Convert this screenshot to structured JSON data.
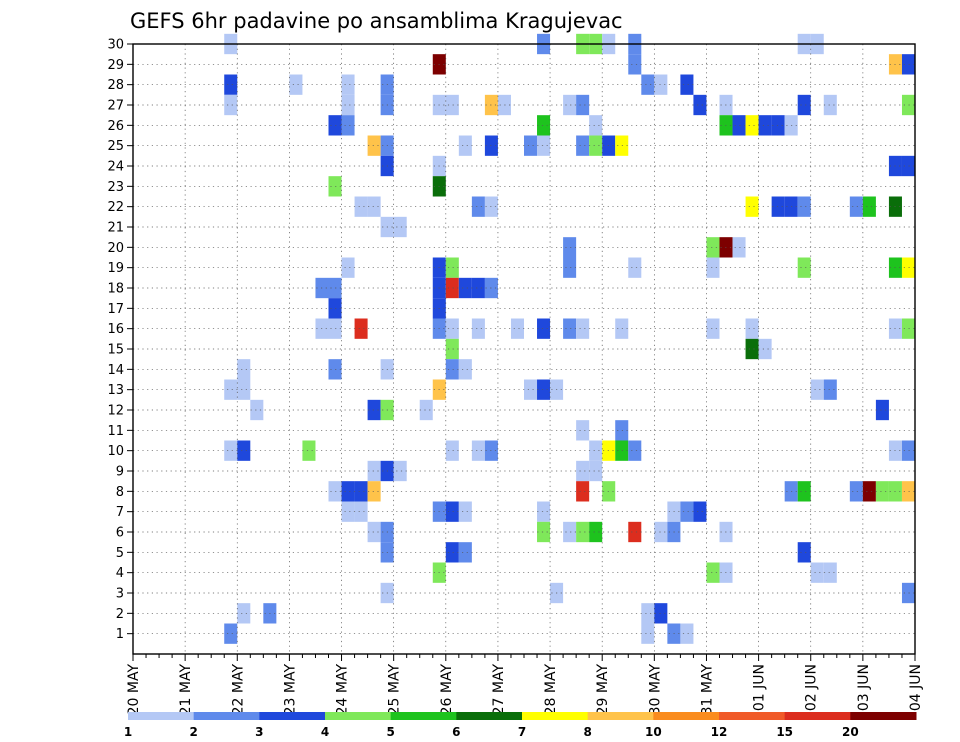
{
  "chart_data": {
    "type": "heatmap",
    "title": "GEFS 6hr padavine po ansamblima Kragujevac",
    "x_ticks": [
      "20 MAY",
      "21 MAY",
      "22 MAY",
      "23 MAY",
      "24 MAY",
      "25 MAY",
      "26 MAY",
      "27 MAY",
      "28 MAY",
      "29 MAY",
      "30 MAY",
      "31 MAY",
      "01 JUN",
      "02 JUN",
      "03 JUN",
      "04 JUN"
    ],
    "y_ticks": [
      "1",
      "2",
      "3",
      "4",
      "5",
      "6",
      "7",
      "8",
      "9",
      "10",
      "11",
      "12",
      "13",
      "14",
      "15",
      "16",
      "17",
      "18",
      "19",
      "20",
      "21",
      "22",
      "23",
      "24",
      "25",
      "26",
      "27",
      "28",
      "29",
      "30"
    ],
    "xlim": [
      0,
      60
    ],
    "ylim": [
      0,
      30
    ],
    "grid": true,
    "legend": {
      "position": "bottom",
      "bins": [
        {
          "label": "1",
          "color": "#b4c8f5"
        },
        {
          "label": "2",
          "color": "#5f8aeb"
        },
        {
          "label": "3",
          "color": "#1f48dc"
        },
        {
          "label": "4",
          "color": "#7fe85a"
        },
        {
          "label": "5",
          "color": "#1ec31e"
        },
        {
          "label": "6",
          "color": "#0a6e0a"
        },
        {
          "label": "7",
          "color": "#ffff00"
        },
        {
          "label": "8",
          "color": "#ffc34a"
        },
        {
          "label": "10",
          "color": "#fa8c1e"
        },
        {
          "label": "12",
          "color": "#f05a28"
        },
        {
          "label": "15",
          "color": "#dc2d1e"
        },
        {
          "label": "20",
          "color": "#7d0000"
        }
      ]
    },
    "member_colors": [
      "#b4c8f5",
      "#5f8aeb",
      "#1f48dc",
      "#7fe85a",
      "#1ec31e",
      "#0a6e0a",
      "#ffff00",
      "#ffc34a",
      "#fa8c1e",
      "#f05a28",
      "#dc2d1e",
      "#7d0000"
    ],
    "cells": [
      [
        7.5,
        30,
        0
      ],
      [
        31.5,
        30,
        1
      ],
      [
        34.5,
        30,
        3
      ],
      [
        35.5,
        30,
        3
      ],
      [
        36.5,
        30,
        0
      ],
      [
        38.5,
        30,
        1
      ],
      [
        51.5,
        30,
        0
      ],
      [
        52.5,
        30,
        0
      ],
      [
        23.5,
        29,
        11
      ],
      [
        38.5,
        29,
        1
      ],
      [
        58.5,
        29,
        7
      ],
      [
        59.5,
        29,
        2
      ],
      [
        7.5,
        28,
        2
      ],
      [
        12.5,
        28,
        0
      ],
      [
        16.5,
        28,
        0
      ],
      [
        19.5,
        28,
        1
      ],
      [
        39.5,
        28,
        1
      ],
      [
        40.5,
        28,
        0
      ],
      [
        42.5,
        28,
        2
      ],
      [
        7.5,
        27,
        0
      ],
      [
        16.5,
        27,
        0
      ],
      [
        19.5,
        27,
        1
      ],
      [
        23.5,
        27,
        0
      ],
      [
        24.5,
        27,
        0
      ],
      [
        27.5,
        27,
        7
      ],
      [
        28.5,
        27,
        0
      ],
      [
        33.5,
        27,
        0
      ],
      [
        34.5,
        27,
        1
      ],
      [
        43.5,
        27,
        2
      ],
      [
        45.5,
        27,
        0
      ],
      [
        51.5,
        27,
        2
      ],
      [
        53.5,
        27,
        0
      ],
      [
        59.5,
        27,
        3
      ],
      [
        15.5,
        26,
        2
      ],
      [
        16.5,
        26,
        1
      ],
      [
        31.5,
        26,
        4
      ],
      [
        35.5,
        26,
        0
      ],
      [
        45.5,
        26,
        4
      ],
      [
        46.5,
        26,
        2
      ],
      [
        47.5,
        26,
        6
      ],
      [
        48.5,
        26,
        2
      ],
      [
        49.5,
        26,
        2
      ],
      [
        50.5,
        26,
        0
      ],
      [
        18.5,
        25,
        7
      ],
      [
        19.5,
        25,
        1
      ],
      [
        25.5,
        25,
        0
      ],
      [
        27.5,
        25,
        2
      ],
      [
        30.5,
        25,
        1
      ],
      [
        31.5,
        25,
        0
      ],
      [
        34.5,
        25,
        1
      ],
      [
        35.5,
        25,
        3
      ],
      [
        36.5,
        25,
        2
      ],
      [
        37.5,
        25,
        6
      ],
      [
        19.5,
        24,
        2
      ],
      [
        23.5,
        24,
        0
      ],
      [
        58.5,
        24,
        2
      ],
      [
        59.5,
        24,
        2
      ],
      [
        15.5,
        23,
        3
      ],
      [
        23.5,
        23,
        5
      ],
      [
        17.5,
        22,
        0
      ],
      [
        18.5,
        22,
        0
      ],
      [
        26.5,
        22,
        1
      ],
      [
        27.5,
        22,
        0
      ],
      [
        47.5,
        22,
        6
      ],
      [
        49.5,
        22,
        2
      ],
      [
        50.5,
        22,
        2
      ],
      [
        51.5,
        22,
        1
      ],
      [
        55.5,
        22,
        1
      ],
      [
        56.5,
        22,
        4
      ],
      [
        58.5,
        22,
        5
      ],
      [
        19.5,
        21,
        0
      ],
      [
        20.5,
        21,
        0
      ],
      [
        33.5,
        20,
        1
      ],
      [
        44.5,
        20,
        3
      ],
      [
        45.5,
        20,
        11
      ],
      [
        46.5,
        20,
        0
      ],
      [
        16.5,
        19,
        0
      ],
      [
        23.5,
        19,
        2
      ],
      [
        24.5,
        19,
        3
      ],
      [
        33.5,
        19,
        1
      ],
      [
        38.5,
        19,
        0
      ],
      [
        44.5,
        19,
        0
      ],
      [
        51.5,
        19,
        3
      ],
      [
        58.5,
        19,
        4
      ],
      [
        59.5,
        19,
        6
      ],
      [
        14.5,
        18,
        1
      ],
      [
        15.5,
        18,
        1
      ],
      [
        23.5,
        18,
        2
      ],
      [
        24.5,
        18,
        10
      ],
      [
        25.5,
        18,
        2
      ],
      [
        26.5,
        18,
        2
      ],
      [
        27.5,
        18,
        1
      ],
      [
        15.5,
        17,
        2
      ],
      [
        23.5,
        17,
        2
      ],
      [
        14.5,
        16,
        0
      ],
      [
        15.5,
        16,
        0
      ],
      [
        17.5,
        16,
        10
      ],
      [
        23.5,
        16,
        1
      ],
      [
        24.5,
        16,
        0
      ],
      [
        26.5,
        16,
        0
      ],
      [
        29.5,
        16,
        0
      ],
      [
        31.5,
        16,
        2
      ],
      [
        33.5,
        16,
        1
      ],
      [
        34.5,
        16,
        0
      ],
      [
        37.5,
        16,
        0
      ],
      [
        44.5,
        16,
        0
      ],
      [
        47.5,
        16,
        0
      ],
      [
        58.5,
        16,
        0
      ],
      [
        59.5,
        16,
        3
      ],
      [
        24.5,
        15,
        3
      ],
      [
        47.5,
        15,
        5
      ],
      [
        48.5,
        15,
        0
      ],
      [
        8.5,
        14,
        0
      ],
      [
        15.5,
        14,
        1
      ],
      [
        19.5,
        14,
        0
      ],
      [
        24.5,
        14,
        1
      ],
      [
        25.5,
        14,
        0
      ],
      [
        7.5,
        13,
        0
      ],
      [
        8.5,
        13,
        0
      ],
      [
        23.5,
        13,
        7
      ],
      [
        30.5,
        13,
        0
      ],
      [
        31.5,
        13,
        2
      ],
      [
        32.5,
        13,
        0
      ],
      [
        52.5,
        13,
        0
      ],
      [
        53.5,
        13,
        1
      ],
      [
        9.5,
        12,
        0
      ],
      [
        18.5,
        12,
        2
      ],
      [
        19.5,
        12,
        3
      ],
      [
        22.5,
        12,
        0
      ],
      [
        57.5,
        12,
        2
      ],
      [
        34.5,
        11,
        0
      ],
      [
        37.5,
        11,
        1
      ],
      [
        7.5,
        10,
        0
      ],
      [
        8.5,
        10,
        2
      ],
      [
        13.5,
        10,
        3
      ],
      [
        24.5,
        10,
        0
      ],
      [
        26.5,
        10,
        0
      ],
      [
        27.5,
        10,
        1
      ],
      [
        35.5,
        10,
        0
      ],
      [
        36.5,
        10,
        6
      ],
      [
        37.5,
        10,
        4
      ],
      [
        38.5,
        10,
        1
      ],
      [
        58.5,
        10,
        0
      ],
      [
        59.5,
        10,
        1
      ],
      [
        18.5,
        9,
        0
      ],
      [
        19.5,
        9,
        2
      ],
      [
        20.5,
        9,
        0
      ],
      [
        34.5,
        9,
        0
      ],
      [
        35.5,
        9,
        0
      ],
      [
        15.5,
        8,
        0
      ],
      [
        16.5,
        8,
        2
      ],
      [
        17.5,
        8,
        2
      ],
      [
        18.5,
        8,
        7
      ],
      [
        34.5,
        8,
        10
      ],
      [
        36.5,
        8,
        3
      ],
      [
        50.5,
        8,
        1
      ],
      [
        51.5,
        8,
        4
      ],
      [
        55.5,
        8,
        1
      ],
      [
        56.5,
        8,
        11
      ],
      [
        57.5,
        8,
        3
      ],
      [
        58.5,
        8,
        3
      ],
      [
        59.5,
        8,
        7
      ],
      [
        16.5,
        7,
        0
      ],
      [
        17.5,
        7,
        0
      ],
      [
        23.5,
        7,
        1
      ],
      [
        24.5,
        7,
        2
      ],
      [
        25.5,
        7,
        0
      ],
      [
        31.5,
        7,
        0
      ],
      [
        41.5,
        7,
        0
      ],
      [
        42.5,
        7,
        1
      ],
      [
        43.5,
        7,
        2
      ],
      [
        18.5,
        6,
        0
      ],
      [
        19.5,
        6,
        1
      ],
      [
        31.5,
        6,
        3
      ],
      [
        33.5,
        6,
        0
      ],
      [
        34.5,
        6,
        3
      ],
      [
        35.5,
        6,
        4
      ],
      [
        38.5,
        6,
        10
      ],
      [
        40.5,
        6,
        0
      ],
      [
        41.5,
        6,
        1
      ],
      [
        45.5,
        6,
        0
      ],
      [
        19.5,
        5,
        1
      ],
      [
        24.5,
        5,
        2
      ],
      [
        25.5,
        5,
        1
      ],
      [
        51.5,
        5,
        2
      ],
      [
        23.5,
        4,
        3
      ],
      [
        44.5,
        4,
        3
      ],
      [
        45.5,
        4,
        0
      ],
      [
        52.5,
        4,
        0
      ],
      [
        53.5,
        4,
        0
      ],
      [
        19.5,
        3,
        0
      ],
      [
        32.5,
        3,
        0
      ],
      [
        59.5,
        3,
        1
      ],
      [
        8.5,
        2,
        0
      ],
      [
        10.5,
        2,
        1
      ],
      [
        39.5,
        2,
        0
      ],
      [
        40.5,
        2,
        2
      ],
      [
        7.5,
        1,
        1
      ],
      [
        39.5,
        1,
        0
      ],
      [
        41.5,
        1,
        1
      ],
      [
        42.5,
        1,
        0
      ]
    ]
  }
}
